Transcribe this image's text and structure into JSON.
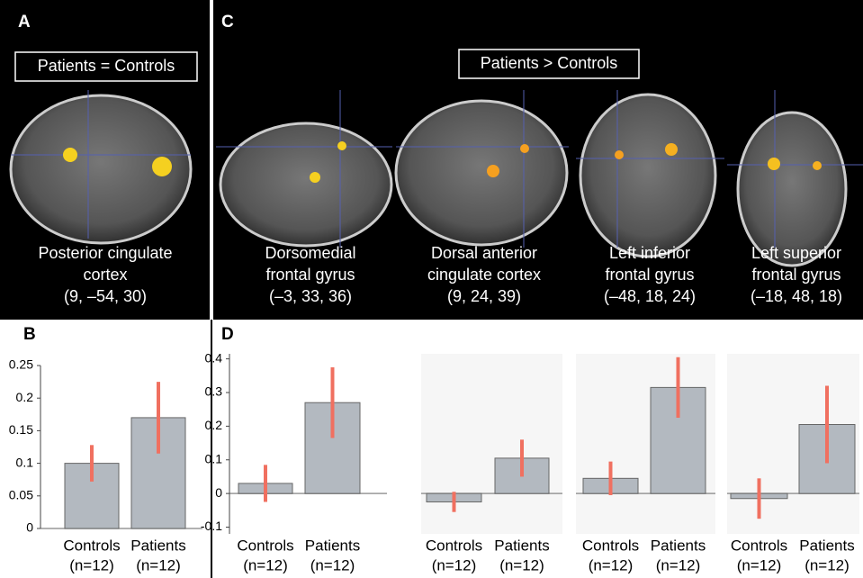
{
  "panels": {
    "a": {
      "letter": "A",
      "box": "Patients = Controls",
      "label": [
        "Posterior cingulate",
        "cortex",
        "(9, –54, 30)"
      ]
    },
    "c": {
      "letter": "C",
      "box": "Patients > Controls",
      "regions": [
        {
          "label": [
            "Dorsomedial",
            "frontal gyrus",
            "(–3, 33, 36)"
          ]
        },
        {
          "label": [
            "Dorsal anterior",
            "cingulate cortex",
            "(9, 24, 39)"
          ]
        },
        {
          "label": [
            "Left inferior",
            "frontal gyrus",
            "(–48, 18, 24)"
          ]
        },
        {
          "label": [
            "Left superior",
            "frontal gyrus",
            "(–18, 48, 18)"
          ]
        }
      ]
    }
  },
  "chart_data": [
    {
      "type": "bar",
      "panel_label": "B",
      "categories": [
        "Controls",
        "Patients"
      ],
      "group_sizes": [
        "(n=12)",
        "(n=12)"
      ],
      "values": [
        0.1,
        0.17
      ],
      "errors": [
        0.028,
        0.055
      ],
      "color": "#b3b9c0",
      "error_color": "#f07060",
      "ylim": [
        0,
        0.25
      ],
      "yticks": [
        0,
        0.05,
        0.1,
        0.15,
        0.2,
        0.25
      ]
    },
    {
      "type": "bar",
      "panel_label": "D",
      "categories": [
        "Controls",
        "Patients"
      ],
      "group_sizes": [
        "(n=12)",
        "(n=12)"
      ],
      "values": [
        0.03,
        0.27
      ],
      "errors": [
        0.055,
        0.105
      ],
      "color": "#b3b9c0",
      "error_color": "#f07060",
      "ylim": [
        -0.12,
        0.415
      ],
      "yticks": [
        -0.1,
        0,
        0.1,
        0.2,
        0.3,
        0.4
      ]
    },
    {
      "type": "bar",
      "categories": [
        "Controls",
        "Patients"
      ],
      "group_sizes": [
        "(n=12)",
        "(n=12)"
      ],
      "values": [
        -0.025,
        0.105
      ],
      "errors": [
        0.03,
        0.055
      ],
      "color": "#b3b9c0",
      "error_color": "#f07060",
      "ylim": [
        -0.12,
        0.415
      ]
    },
    {
      "type": "bar",
      "categories": [
        "Controls",
        "Patients"
      ],
      "group_sizes": [
        "(n=12)",
        "(n=12)"
      ],
      "values": [
        0.045,
        0.315
      ],
      "errors": [
        0.05,
        0.09
      ],
      "color": "#b3b9c0",
      "error_color": "#f07060",
      "ylim": [
        -0.12,
        0.415
      ]
    },
    {
      "type": "bar",
      "categories": [
        "Controls",
        "Patients"
      ],
      "group_sizes": [
        "(n=12)",
        "(n=12)"
      ],
      "values": [
        -0.015,
        0.205
      ],
      "errors": [
        0.06,
        0.115
      ],
      "color": "#b3b9c0",
      "error_color": "#f07060",
      "ylim": [
        -0.12,
        0.415
      ]
    }
  ]
}
